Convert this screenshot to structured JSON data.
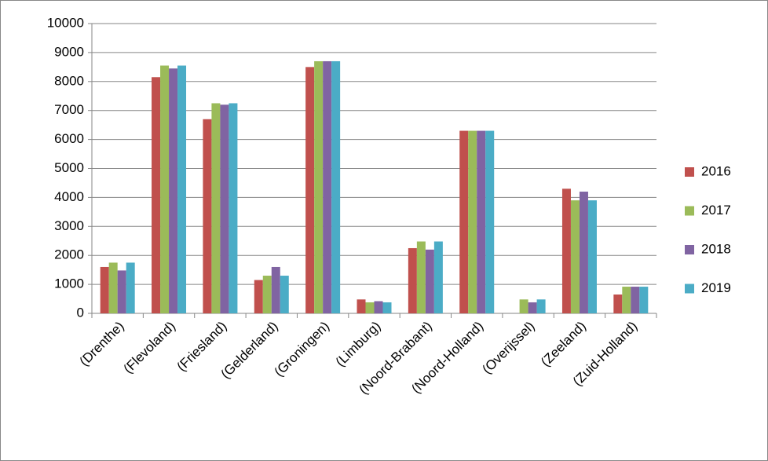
{
  "chart_data": {
    "type": "bar",
    "categories": [
      "(Drenthe)",
      "(Flevoland)",
      "(Friesland)",
      "(Gelderland)",
      "(Groningen)",
      "(Limburg)",
      "(Noord-Brabant)",
      "(Noord-Holland)",
      "(Overijssel)",
      "(Zeeland)",
      "(Zuid-Holland)"
    ],
    "series": [
      {
        "name": "2016",
        "color": "#c0504d",
        "values": [
          1600,
          8150,
          6700,
          1150,
          8500,
          480,
          2250,
          6300,
          null,
          4300,
          650
        ]
      },
      {
        "name": "2017",
        "color": "#9bbb59",
        "values": [
          1750,
          8550,
          7250,
          1300,
          8700,
          380,
          2480,
          6300,
          480,
          3900,
          920
        ]
      },
      {
        "name": "2018",
        "color": "#8064a2",
        "values": [
          1480,
          8450,
          7200,
          1600,
          8700,
          420,
          2200,
          6300,
          380,
          4200,
          920
        ]
      },
      {
        "name": "2019",
        "color": "#4bacc6",
        "values": [
          1750,
          8550,
          7250,
          1300,
          8700,
          380,
          2480,
          6300,
          480,
          3900,
          920
        ]
      }
    ],
    "ylim": [
      0,
      10000
    ],
    "yticks": [
      0,
      1000,
      2000,
      3000,
      4000,
      5000,
      6000,
      7000,
      8000,
      9000,
      10000
    ],
    "grid": true,
    "legend": "right"
  }
}
